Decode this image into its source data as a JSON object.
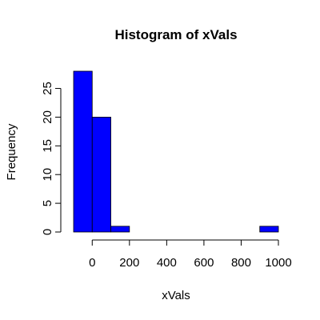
{
  "chart_data": {
    "type": "bar",
    "title": "Histogram of xVals",
    "xlabel": "xVals",
    "ylabel": "Frequency",
    "bins": [
      {
        "from": -100,
        "to": 0,
        "count": 28
      },
      {
        "from": 0,
        "to": 100,
        "count": 20
      },
      {
        "from": 100,
        "to": 200,
        "count": 1
      },
      {
        "from": 200,
        "to": 300,
        "count": 0
      },
      {
        "from": 300,
        "to": 400,
        "count": 0
      },
      {
        "from": 400,
        "to": 500,
        "count": 0
      },
      {
        "from": 500,
        "to": 600,
        "count": 0
      },
      {
        "from": 600,
        "to": 700,
        "count": 0
      },
      {
        "from": 700,
        "to": 800,
        "count": 0
      },
      {
        "from": 800,
        "to": 900,
        "count": 0
      },
      {
        "from": 900,
        "to": 1000,
        "count": 1
      }
    ],
    "x_ticks": [
      0,
      200,
      400,
      600,
      800,
      1000
    ],
    "x_tick_labels": [
      "0",
      "200",
      "400",
      "600",
      "800",
      "1000"
    ],
    "y_ticks": [
      0,
      5,
      10,
      15,
      20,
      25
    ],
    "y_tick_labels": [
      "0",
      "5",
      "10",
      "15",
      "20",
      "25"
    ],
    "xlim": [
      -100,
      1000
    ],
    "ylim": [
      0,
      28
    ],
    "bar_color": "#0000ff",
    "grid": false
  }
}
